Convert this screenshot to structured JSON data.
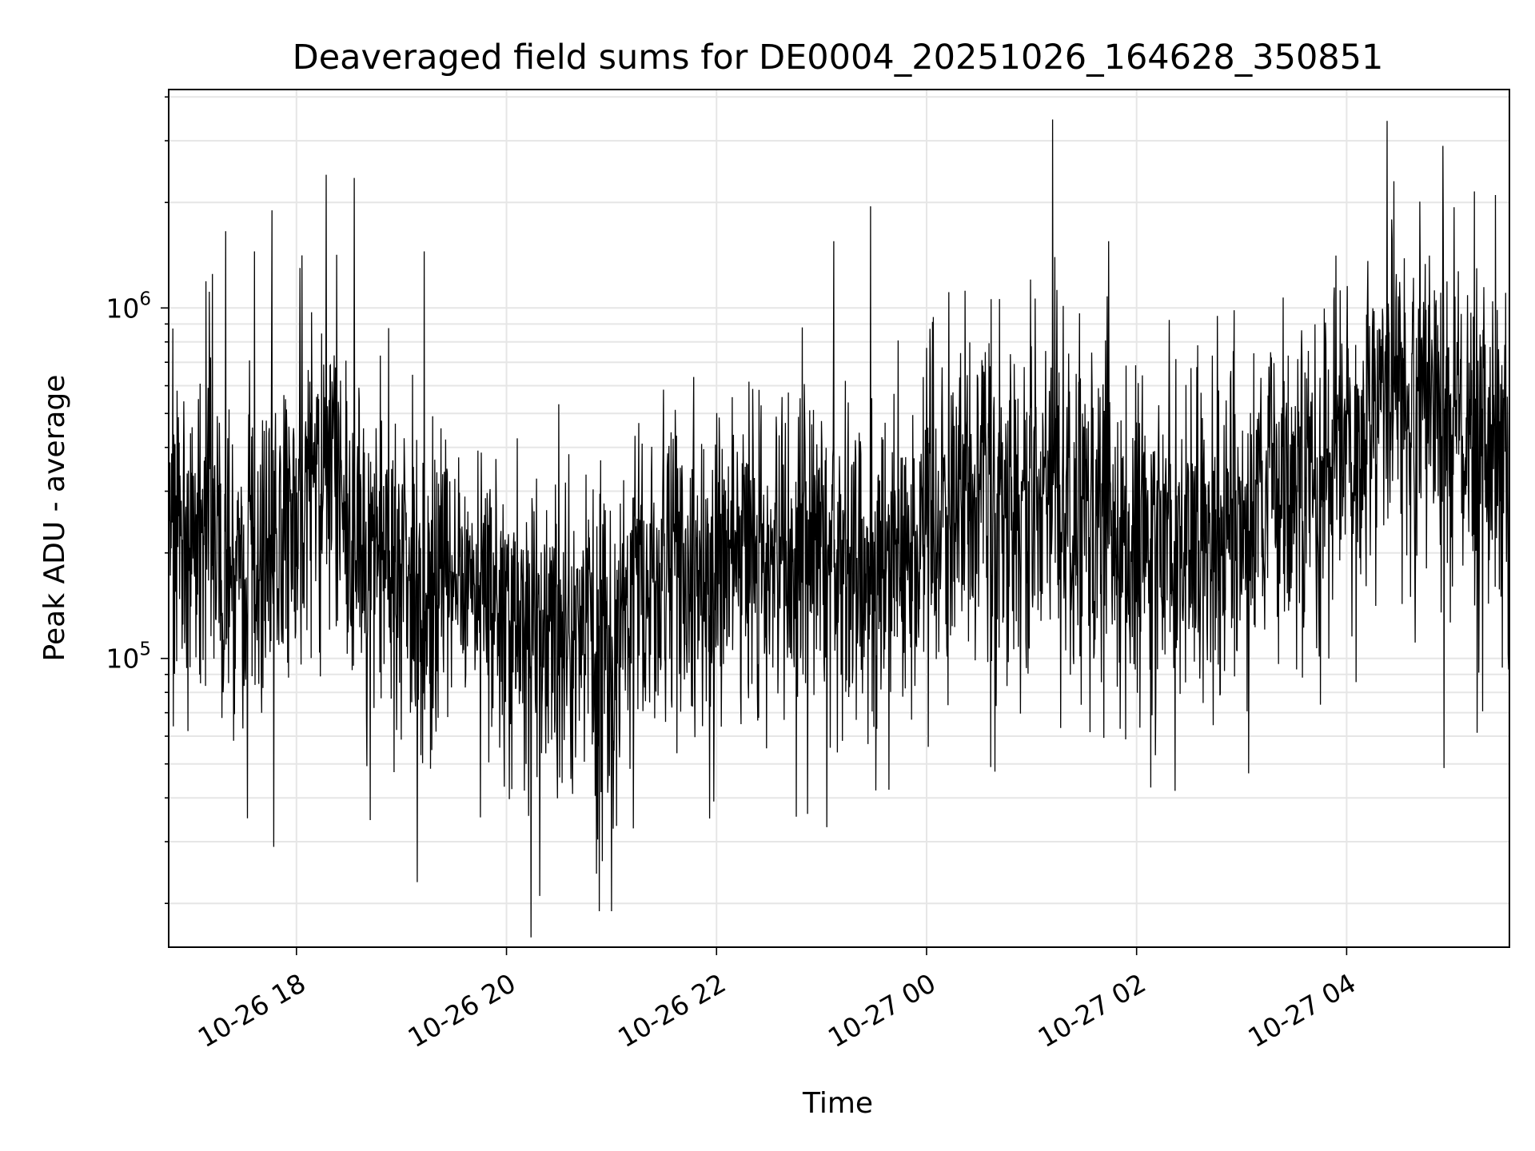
{
  "chart_data": {
    "type": "line",
    "title": "Deaveraged field sums for DE0004_20251026_164628_350851",
    "xlabel": "Time",
    "ylabel": "Peak ADU - average",
    "x_range": [
      "2025-10-26T16:47:00",
      "2025-10-27T05:33:00"
    ],
    "y_scale": "log",
    "ylim": [
      15000,
      4200000
    ],
    "x_ticks": [
      {
        "value": "2025-10-26T18:00:00",
        "label": "10-26 18"
      },
      {
        "value": "2025-10-26T20:00:00",
        "label": "10-26 20"
      },
      {
        "value": "2025-10-26T22:00:00",
        "label": "10-26 22"
      },
      {
        "value": "2025-10-27T00:00:00",
        "label": "10-27 00"
      },
      {
        "value": "2025-10-27T02:00:00",
        "label": "10-27 02"
      },
      {
        "value": "2025-10-27T04:00:00",
        "label": "10-27 04"
      }
    ],
    "y_major_ticks": [
      {
        "value": 100000,
        "base": "10",
        "exponent": "5"
      },
      {
        "value": 1000000,
        "base": "10",
        "exponent": "6"
      }
    ],
    "grid": true,
    "line_color": "#000000",
    "grid_color": "#e6e6e6",
    "series": [
      {
        "x": [
          "2025-10-26T16:47:00",
          "2025-10-26T17:00:00",
          "2025-10-26T17:10:00",
          "2025-10-26T17:20:00",
          "2025-10-26T17:30:00",
          "2025-10-26T17:40:00",
          "2025-10-26T17:50:00",
          "2025-10-26T18:00:00",
          "2025-10-26T18:10:00",
          "2025-10-26T18:20:00",
          "2025-10-26T18:30:00",
          "2025-10-26T18:40:00",
          "2025-10-26T18:50:00",
          "2025-10-26T19:00:00",
          "2025-10-26T19:10:00",
          "2025-10-26T19:20:00",
          "2025-10-26T19:30:00",
          "2025-10-26T19:40:00",
          "2025-10-26T19:50:00",
          "2025-10-26T20:00:00",
          "2025-10-26T20:10:00",
          "2025-10-26T20:20:00",
          "2025-10-26T20:30:00",
          "2025-10-26T20:40:00",
          "2025-10-26T20:50:00",
          "2025-10-26T21:00:00",
          "2025-10-26T21:10:00",
          "2025-10-26T21:20:00",
          "2025-10-26T21:30:00",
          "2025-10-26T21:40:00",
          "2025-10-26T21:50:00",
          "2025-10-26T22:00:00",
          "2025-10-26T22:10:00",
          "2025-10-26T22:20:00",
          "2025-10-26T22:30:00",
          "2025-10-26T22:40:00",
          "2025-10-26T22:50:00",
          "2025-10-26T23:00:00",
          "2025-10-26T23:10:00",
          "2025-10-26T23:20:00",
          "2025-10-26T23:30:00",
          "2025-10-26T23:40:00",
          "2025-10-26T23:50:00",
          "2025-10-27T00:00:00",
          "2025-10-27T00:10:00",
          "2025-10-27T00:20:00",
          "2025-10-27T00:30:00",
          "2025-10-27T00:40:00",
          "2025-10-27T00:50:00",
          "2025-10-27T01:00:00",
          "2025-10-27T01:10:00",
          "2025-10-27T01:20:00",
          "2025-10-27T01:30:00",
          "2025-10-27T01:40:00",
          "2025-10-27T01:50:00",
          "2025-10-27T02:00:00",
          "2025-10-27T02:10:00",
          "2025-10-27T02:20:00",
          "2025-10-27T02:30:00",
          "2025-10-27T02:40:00",
          "2025-10-27T02:50:00",
          "2025-10-27T03:00:00",
          "2025-10-27T03:10:00",
          "2025-10-27T03:20:00",
          "2025-10-27T03:30:00",
          "2025-10-27T03:40:00",
          "2025-10-27T03:50:00",
          "2025-10-27T04:00:00",
          "2025-10-27T04:10:00",
          "2025-10-27T04:20:00",
          "2025-10-27T04:30:00",
          "2025-10-27T04:40:00",
          "2025-10-27T04:50:00",
          "2025-10-27T05:00:00",
          "2025-10-27T05:10:00",
          "2025-10-27T05:20:00",
          "2025-10-27T05:33:00"
        ],
        "y_typical": [
          220000,
          230000,
          300000,
          180000,
          190000,
          200000,
          210000,
          250000,
          300000,
          320000,
          250000,
          180000,
          200000,
          190000,
          160000,
          150000,
          170000,
          160000,
          140000,
          140000,
          130000,
          120000,
          130000,
          120000,
          110000,
          110000,
          140000,
          160000,
          170000,
          180000,
          160000,
          190000,
          190000,
          200000,
          200000,
          190000,
          210000,
          200000,
          180000,
          190000,
          170000,
          190000,
          200000,
          210000,
          250000,
          290000,
          280000,
          300000,
          320000,
          300000,
          300000,
          290000,
          280000,
          280000,
          240000,
          220000,
          210000,
          200000,
          200000,
          210000,
          230000,
          250000,
          280000,
          300000,
          320000,
          330000,
          370000,
          420000,
          500000,
          550000,
          560000,
          520000,
          470000,
          430000,
          420000,
          430000,
          400000
        ],
        "y_upper": [
          380000,
          400000,
          600000,
          330000,
          340000,
          360000,
          380000,
          430000,
          560000,
          600000,
          470000,
          330000,
          360000,
          340000,
          290000,
          280000,
          300000,
          290000,
          260000,
          250000,
          240000,
          220000,
          230000,
          220000,
          200000,
          210000,
          260000,
          290000,
          310000,
          330000,
          300000,
          350000,
          340000,
          360000,
          360000,
          350000,
          390000,
          370000,
          330000,
          350000,
          310000,
          350000,
          370000,
          390000,
          460000,
          530000,
          520000,
          560000,
          590000,
          560000,
          550000,
          540000,
          520000,
          510000,
          440000,
          410000,
          390000,
          370000,
          370000,
          390000,
          430000,
          460000,
          520000,
          560000,
          590000,
          610000,
          690000,
          780000,
          920000,
          1010000,
          1030000,
          960000,
          870000,
          800000,
          780000,
          790000,
          740000
        ],
        "y_lower": [
          120000,
          125000,
          160000,
          95000,
          100000,
          105000,
          110000,
          130000,
          160000,
          170000,
          130000,
          95000,
          105000,
          100000,
          85000,
          80000,
          90000,
          85000,
          75000,
          72000,
          68000,
          62000,
          68000,
          62000,
          56000,
          58000,
          72000,
          85000,
          90000,
          95000,
          85000,
          100000,
          100000,
          105000,
          105000,
          100000,
          110000,
          105000,
          95000,
          100000,
          90000,
          100000,
          105000,
          110000,
          130000,
          150000,
          145000,
          155000,
          165000,
          155000,
          155000,
          150000,
          145000,
          145000,
          125000,
          115000,
          110000,
          105000,
          105000,
          110000,
          120000,
          130000,
          145000,
          155000,
          165000,
          170000,
          190000,
          215000,
          255000,
          280000,
          285000,
          265000,
          240000,
          220000,
          215000,
          220000,
          205000
        ]
      }
    ],
    "spikes_high": [
      {
        "x": "2025-10-26T17:12:00",
        "y": 1250000
      },
      {
        "x": "2025-10-26T17:36:00",
        "y": 1450000
      },
      {
        "x": "2025-10-26T17:46:00",
        "y": 1900000
      },
      {
        "x": "2025-10-26T18:02:00",
        "y": 1300000
      },
      {
        "x": "2025-10-26T18:17:00",
        "y": 2400000
      },
      {
        "x": "2025-10-26T18:33:00",
        "y": 2350000
      },
      {
        "x": "2025-10-26T19:13:00",
        "y": 1450000
      },
      {
        "x": "2025-10-26T22:49:00",
        "y": 880000
      },
      {
        "x": "2025-10-26T23:07:00",
        "y": 1550000
      },
      {
        "x": "2025-10-26T23:28:00",
        "y": 1950000
      },
      {
        "x": "2025-10-27T00:22:00",
        "y": 1120000
      },
      {
        "x": "2025-10-27T01:12:00",
        "y": 3450000
      },
      {
        "x": "2025-10-27T01:44:00",
        "y": 1550000
      },
      {
        "x": "2025-10-27T04:27:00",
        "y": 2300000
      },
      {
        "x": "2025-10-27T04:55:00",
        "y": 2900000
      },
      {
        "x": "2025-10-27T05:13:00",
        "y": 2150000
      },
      {
        "x": "2025-10-27T05:25:00",
        "y": 2100000
      }
    ],
    "spikes_low": [
      {
        "x": "2025-10-26T17:32:00",
        "y": 35000
      },
      {
        "x": "2025-10-26T17:47:00",
        "y": 29000
      },
      {
        "x": "2025-10-26T19:09:00",
        "y": 23000
      },
      {
        "x": "2025-10-26T20:14:00",
        "y": 16000
      },
      {
        "x": "2025-10-26T20:19:00",
        "y": 21000
      },
      {
        "x": "2025-10-26T20:53:00",
        "y": 19000
      },
      {
        "x": "2025-10-26T21:00:00",
        "y": 19000
      },
      {
        "x": "2025-10-26T22:52:00",
        "y": 36000
      },
      {
        "x": "2025-10-26T23:03:00",
        "y": 33000
      },
      {
        "x": "2025-10-26T23:31:00",
        "y": 42000
      },
      {
        "x": "2025-10-27T03:04:00",
        "y": 47000
      }
    ]
  }
}
